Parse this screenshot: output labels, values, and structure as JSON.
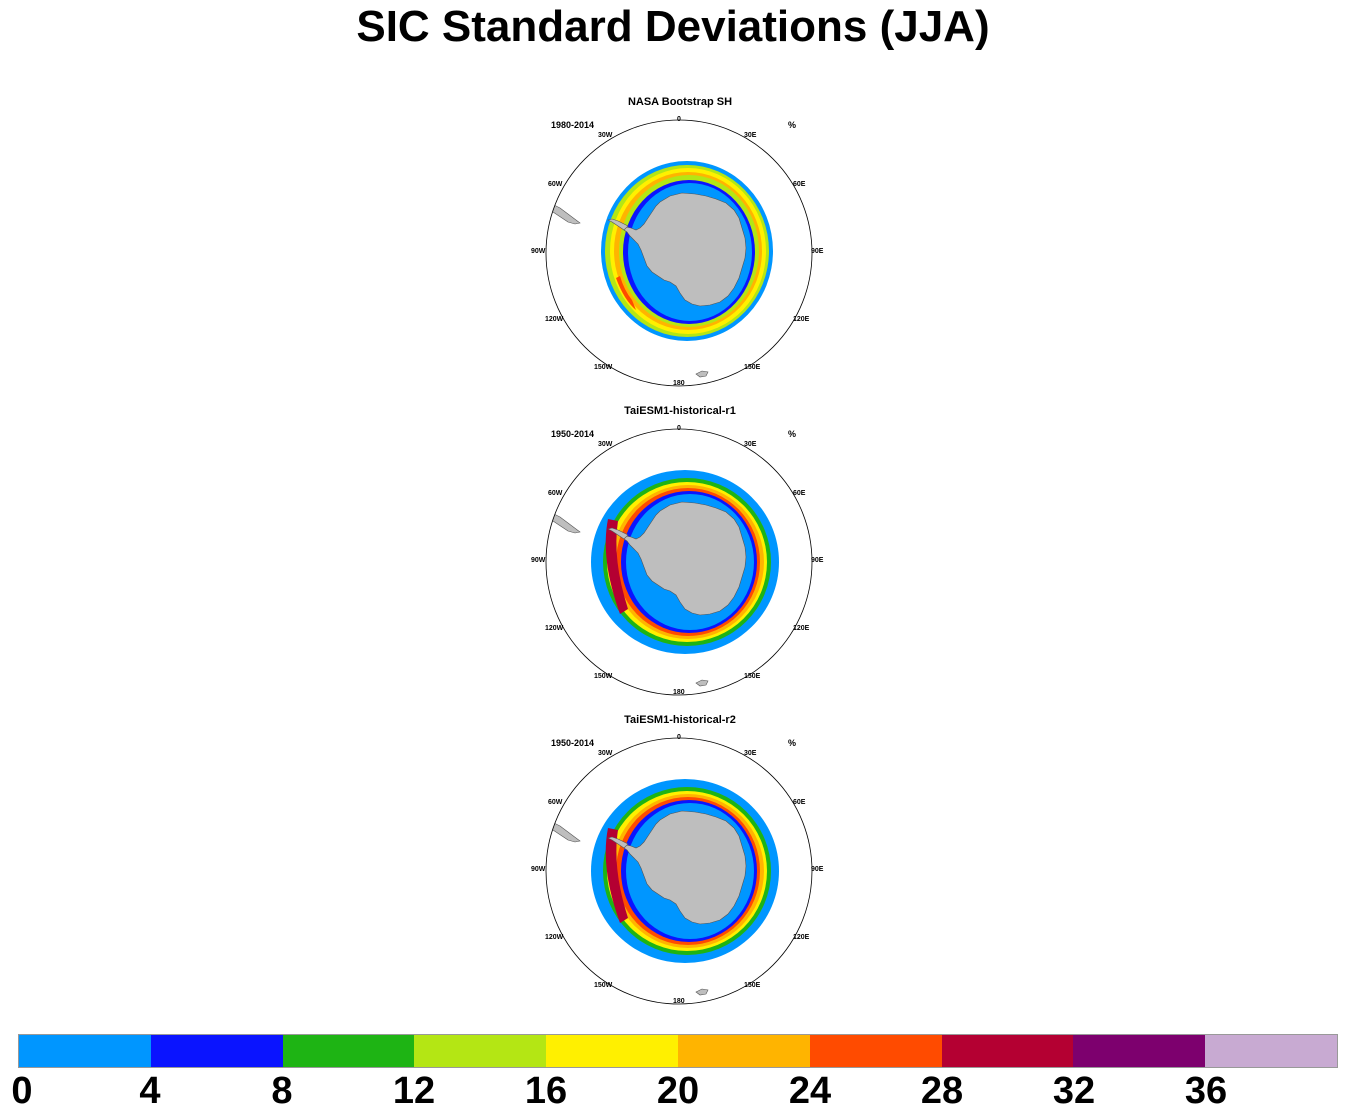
{
  "title": "SIC Standard Deviations (JJA)",
  "longitude_labels": {
    "lon_0": "0",
    "lon_30e": "30E",
    "lon_60e": "60E",
    "lon_90e": "90E",
    "lon_120e": "120E",
    "lon_150e": "150E",
    "lon_180": "180",
    "lon_150w": "150W",
    "lon_120w": "120W",
    "lon_90w": "90W",
    "lon_60w": "60W",
    "lon_30w": "30W"
  },
  "panels": [
    {
      "title": "NASA Bootstrap SH",
      "period": "1980-2014",
      "unit": "%"
    },
    {
      "title": "TaiESM1-historical-r1",
      "period": "1950-2014",
      "unit": "%"
    },
    {
      "title": "TaiESM1-historical-r2",
      "period": "1950-2014",
      "unit": "%"
    }
  ],
  "colorbar": {
    "tick_labels": [
      "0",
      "4",
      "8",
      "12",
      "16",
      "20",
      "24",
      "28",
      "32",
      "36"
    ],
    "colors": [
      "#0096ff",
      "#0a14ff",
      "#1eb414",
      "#b4e614",
      "#fff000",
      "#ffb400",
      "#ff4b00",
      "#b40032",
      "#7d006e",
      "#c8aad2"
    ]
  },
  "colors": {
    "land": "#bebebe",
    "ocean": "#ffffff",
    "coastline": "#555555"
  }
}
